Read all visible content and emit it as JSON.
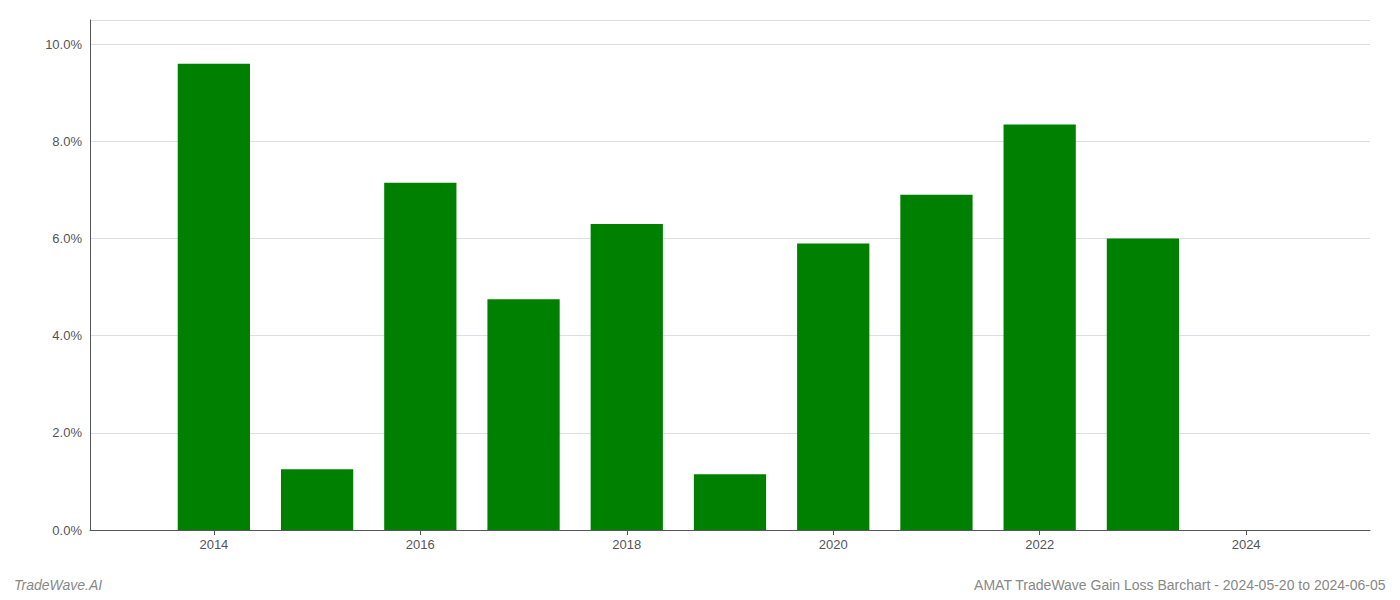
{
  "chart_data": {
    "type": "bar",
    "x": [
      2014,
      2015,
      2016,
      2017,
      2018,
      2019,
      2020,
      2021,
      2022,
      2023,
      2024
    ],
    "values": [
      0.096,
      0.0125,
      0.0715,
      0.0475,
      0.063,
      0.0115,
      0.059,
      0.069,
      0.0835,
      0.06,
      0.0
    ],
    "color": "#008000",
    "xlim": [
      2012.8,
      2025.2
    ],
    "xticks": [
      2014,
      2016,
      2018,
      2020,
      2022,
      2024
    ],
    "ylim": [
      0,
      0.105
    ],
    "yticks": [
      {
        "value": 0.0,
        "label": "0.0%"
      },
      {
        "value": 0.02,
        "label": "2.0%"
      },
      {
        "value": 0.04,
        "label": "4.0%"
      },
      {
        "value": 0.06,
        "label": "6.0%"
      },
      {
        "value": 0.08,
        "label": "8.0%"
      },
      {
        "value": 0.1,
        "label": "10.0%"
      }
    ],
    "grid": true,
    "annotations": [
      "TradeWave.AI",
      "AMAT TradeWave Gain Loss Barchart - 2024-05-20 to 2024-06-05"
    ]
  }
}
